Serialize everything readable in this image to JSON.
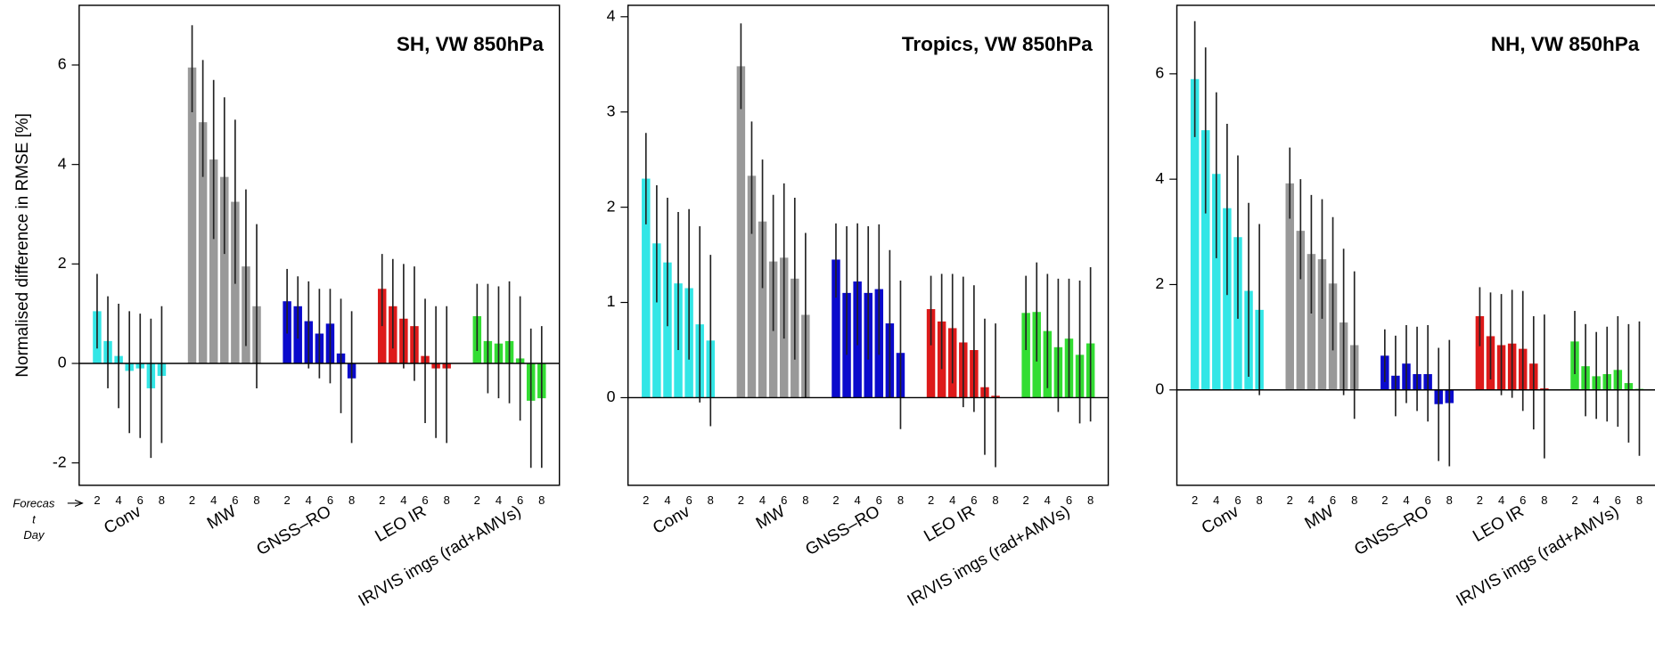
{
  "chart_data": [
    {
      "type": "bar",
      "title": "SH, VW 850hPa",
      "ylabel": "Normalised difference in RMSE [%]",
      "xlabel_lines": [
        "Forecas",
        "t",
        "Day"
      ],
      "days": [
        2,
        3,
        4,
        5,
        6,
        7,
        8
      ],
      "xticks": [
        2,
        4,
        6,
        8
      ],
      "ylim": [
        -2.45,
        7.2
      ],
      "yticks": [
        -2,
        0,
        2,
        4,
        6
      ],
      "series": [
        {
          "name": "Conv",
          "color": "#33e6e6",
          "values": [
            1.05,
            0.45,
            0.15,
            -0.15,
            -0.1,
            -0.5,
            -0.25
          ],
          "ci_low": [
            0.3,
            -0.5,
            -0.9,
            -1.4,
            -1.5,
            -1.9,
            -1.6
          ],
          "ci_high": [
            1.8,
            1.35,
            1.2,
            1.05,
            1.0,
            0.9,
            1.15
          ]
        },
        {
          "name": "MW",
          "color": "#999999",
          "values": [
            5.95,
            4.85,
            4.1,
            3.75,
            3.25,
            1.95,
            1.15
          ],
          "ci_low": [
            5.05,
            3.75,
            2.5,
            2.2,
            1.6,
            0.35,
            -0.5
          ],
          "ci_high": [
            6.8,
            6.1,
            5.7,
            5.35,
            4.9,
            3.5,
            2.8
          ]
        },
        {
          "name": "GNSS–RO",
          "color": "#0a0acc",
          "values": [
            1.25,
            1.15,
            0.85,
            0.6,
            0.8,
            0.2,
            -0.3
          ],
          "ci_low": [
            0.6,
            0.5,
            -0.1,
            -0.3,
            -0.4,
            -1.0,
            -1.6
          ],
          "ci_high": [
            1.9,
            1.75,
            1.65,
            1.5,
            1.5,
            1.3,
            1.05
          ]
        },
        {
          "name": "LEO IR",
          "color": "#dd1a1a",
          "values": [
            1.5,
            1.15,
            0.9,
            0.75,
            0.15,
            -0.1,
            -0.1
          ],
          "ci_low": [
            0.75,
            0.3,
            -0.1,
            -0.35,
            -1.2,
            -1.5,
            -1.6
          ],
          "ci_high": [
            2.2,
            2.1,
            2.0,
            1.95,
            1.3,
            1.15,
            1.15
          ]
        },
        {
          "name": "IR/VIS imgs (rad+AMVs)",
          "color": "#33dd33",
          "values": [
            0.95,
            0.45,
            0.4,
            0.45,
            0.1,
            -0.75,
            -0.7
          ],
          "ci_low": [
            0.25,
            -0.6,
            -0.7,
            -0.8,
            -1.15,
            -2.1,
            -2.1
          ],
          "ci_high": [
            1.6,
            1.6,
            1.55,
            1.65,
            1.35,
            0.7,
            0.75
          ]
        }
      ]
    },
    {
      "type": "bar",
      "title": "Tropics, VW 850hPa",
      "days": [
        2,
        3,
        4,
        5,
        6,
        7,
        8
      ],
      "xticks": [
        2,
        4,
        6,
        8
      ],
      "ylim": [
        -0.92,
        4.12
      ],
      "yticks": [
        0,
        1,
        2,
        3,
        4
      ],
      "series": [
        {
          "name": "Conv",
          "color": "#33e6e6",
          "values": [
            2.3,
            1.62,
            1.42,
            1.2,
            1.15,
            0.77,
            0.6
          ],
          "ci_low": [
            1.82,
            1.0,
            0.75,
            0.5,
            0.4,
            -0.05,
            -0.3
          ],
          "ci_high": [
            2.78,
            2.23,
            2.1,
            1.95,
            1.98,
            1.8,
            1.5
          ]
        },
        {
          "name": "MW",
          "color": "#999999",
          "values": [
            3.48,
            2.33,
            1.85,
            1.43,
            1.47,
            1.25,
            0.87
          ],
          "ci_low": [
            3.03,
            1.72,
            1.15,
            0.7,
            0.62,
            0.4,
            0.0
          ],
          "ci_high": [
            3.93,
            2.9,
            2.5,
            2.13,
            2.25,
            2.1,
            1.73
          ]
        },
        {
          "name": "GNSS–RO",
          "color": "#0a0acc",
          "values": [
            1.45,
            1.1,
            1.22,
            1.1,
            1.14,
            0.78,
            0.47
          ],
          "ci_low": [
            1.05,
            0.45,
            0.55,
            0.4,
            0.45,
            0.0,
            -0.33
          ],
          "ci_high": [
            1.83,
            1.8,
            1.83,
            1.8,
            1.82,
            1.55,
            1.23
          ]
        },
        {
          "name": "LEO IR",
          "color": "#dd1a1a",
          "values": [
            0.93,
            0.8,
            0.73,
            0.58,
            0.5,
            0.11,
            0.02
          ],
          "ci_low": [
            0.55,
            0.3,
            0.15,
            -0.1,
            -0.15,
            -0.6,
            -0.73
          ],
          "ci_high": [
            1.28,
            1.3,
            1.3,
            1.27,
            1.18,
            0.83,
            0.78
          ]
        },
        {
          "name": "IR/VIS imgs (rad+AMVs)",
          "color": "#33dd33",
          "values": [
            0.89,
            0.9,
            0.7,
            0.53,
            0.62,
            0.45,
            0.57
          ],
          "ci_low": [
            0.5,
            0.38,
            0.1,
            -0.15,
            0.0,
            -0.27,
            -0.25
          ],
          "ci_high": [
            1.28,
            1.42,
            1.3,
            1.25,
            1.25,
            1.23,
            1.37
          ]
        }
      ]
    },
    {
      "type": "bar",
      "title": "NH, VW 850hPa",
      "days": [
        2,
        3,
        4,
        5,
        6,
        7,
        8
      ],
      "xticks": [
        2,
        4,
        6,
        8
      ],
      "ylim": [
        -1.81,
        7.3
      ],
      "yticks": [
        0,
        2,
        4,
        6
      ],
      "series": [
        {
          "name": "Conv",
          "color": "#33e6e6",
          "values": [
            5.9,
            4.93,
            4.1,
            3.45,
            2.9,
            1.88,
            1.52
          ],
          "ci_low": [
            4.8,
            3.35,
            2.5,
            1.8,
            1.35,
            0.25,
            -0.1
          ],
          "ci_high": [
            7.0,
            6.5,
            5.65,
            5.05,
            4.45,
            3.55,
            3.15
          ]
        },
        {
          "name": "MW",
          "color": "#999999",
          "values": [
            3.92,
            3.02,
            2.58,
            2.48,
            2.02,
            1.28,
            0.85
          ],
          "ci_low": [
            3.25,
            2.1,
            1.45,
            1.35,
            0.75,
            -0.1,
            -0.55
          ],
          "ci_high": [
            4.6,
            4.0,
            3.7,
            3.62,
            3.28,
            2.68,
            2.25
          ]
        },
        {
          "name": "GNSS–RO",
          "color": "#0a0acc",
          "values": [
            0.65,
            0.27,
            0.5,
            0.3,
            0.3,
            -0.27,
            -0.25
          ],
          "ci_low": [
            0.15,
            -0.5,
            -0.25,
            -0.4,
            -0.6,
            -1.35,
            -1.45
          ],
          "ci_high": [
            1.15,
            1.03,
            1.23,
            1.2,
            1.23,
            0.8,
            0.95
          ]
        },
        {
          "name": "LEO IR",
          "color": "#dd1a1a",
          "values": [
            1.4,
            1.02,
            0.85,
            0.88,
            0.78,
            0.5,
            0.03
          ],
          "ci_low": [
            0.83,
            0.2,
            -0.1,
            -0.15,
            -0.4,
            -0.75,
            -1.3
          ],
          "ci_high": [
            1.95,
            1.85,
            1.82,
            1.9,
            1.88,
            1.4,
            1.43
          ]
        },
        {
          "name": "IR/VIS imgs (rad+AMVs)",
          "color": "#33dd33",
          "values": [
            0.92,
            0.45,
            0.26,
            0.3,
            0.38,
            0.13,
            0.02
          ],
          "ci_low": [
            0.3,
            -0.5,
            -0.55,
            -0.6,
            -0.7,
            -1.0,
            -1.25
          ],
          "ci_high": [
            1.5,
            1.25,
            1.1,
            1.2,
            1.4,
            1.25,
            1.3
          ]
        }
      ]
    }
  ]
}
